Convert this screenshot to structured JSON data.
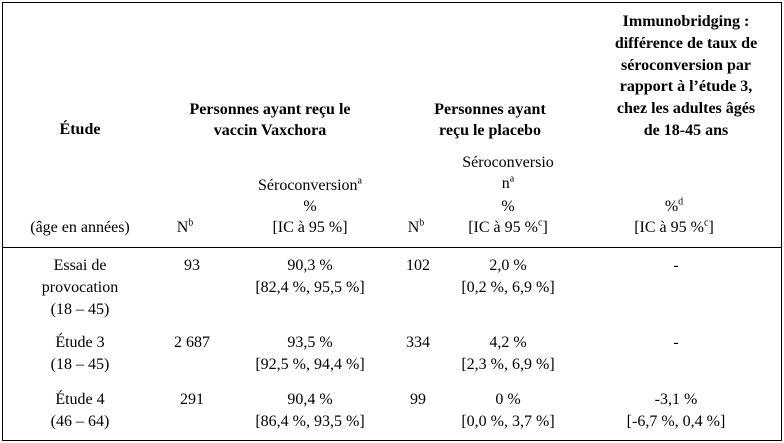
{
  "header": {
    "study": "Étude",
    "age": "(âge en années)",
    "vaccine_group": [
      "Personnes ayant reçu le",
      "vaccin Vaxchora"
    ],
    "placebo_group": [
      "Personnes ayant",
      "reçu le placebo"
    ],
    "immunobridging": [
      "Immunobridging :",
      "différence de taux de",
      "séroconversion par",
      "rapport à l’étude 3,",
      "chez les adultes âgés",
      "de 18-45 ans"
    ],
    "vaccine_n": {
      "text": "N",
      "sup": "b"
    },
    "vaccine_sero": {
      "text": "Séroconversion",
      "sup": "a",
      "unit": "%",
      "ci": "[IC à 95 %]"
    },
    "placebo_n": {
      "text": "N",
      "sup": "b"
    },
    "placebo_sero": {
      "lines": [
        "Séroconversio",
        "n"
      ],
      "sup": "a",
      "unit": "%",
      "ci": {
        "before": "[IC à 95 %",
        "sup": "c",
        "after": "]"
      }
    },
    "immuno": {
      "unit": "%",
      "sup": "d",
      "ci": {
        "before": "[IC à 95 %",
        "sup": "c",
        "after": "]"
      }
    }
  },
  "rows": [
    {
      "study": [
        "Essai de",
        "provocation",
        "(18 – 45)"
      ],
      "vaccine_n": "93",
      "vaccine_pct": "90,3 %",
      "vaccine_ci": "[82,4 %, 95,5 %]",
      "placebo_n": "102",
      "placebo_pct": "2,0 %",
      "placebo_ci": "[0,2 %, 6,9 %]",
      "diff_pct": "-"
    },
    {
      "study": [
        "Étude 3",
        "(18 – 45)"
      ],
      "vaccine_n": "2 687",
      "vaccine_pct": "93,5 %",
      "vaccine_ci": "[92,5 %, 94,4 %]",
      "placebo_n": "334",
      "placebo_pct": "4,2 %",
      "placebo_ci": "[2,3 %, 6,9 %]",
      "diff_pct": "-"
    },
    {
      "study": [
        "Étude 4",
        "(46 – 64)"
      ],
      "vaccine_n": "291",
      "vaccine_pct": "90,4 %",
      "vaccine_ci": "[86,4 %, 93,5 %]",
      "placebo_n": "99",
      "placebo_pct": "0 %",
      "placebo_ci": "[0,0 %, 3,7 %]",
      "diff_pct": "-3,1 %",
      "diff_ci": "[-6,7 %, 0,4 %]"
    }
  ]
}
